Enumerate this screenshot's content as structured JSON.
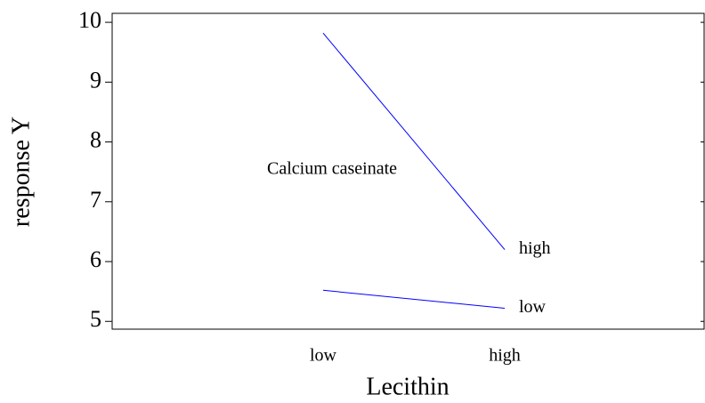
{
  "chart_data": {
    "type": "line",
    "x_label": "Lecithin",
    "y_label": "response Y",
    "legend_title": "Calcium caseinate",
    "categories": [
      "low",
      "high"
    ],
    "series": [
      {
        "name": "high",
        "color": "#0000ff",
        "values": [
          9.82,
          6.2
        ]
      },
      {
        "name": "low",
        "color": "#0000ff",
        "values": [
          5.52,
          5.22
        ]
      }
    ],
    "ylim": [
      4.87,
      10.15
    ],
    "yticks": [
      5,
      6,
      7,
      8,
      9,
      10
    ]
  }
}
